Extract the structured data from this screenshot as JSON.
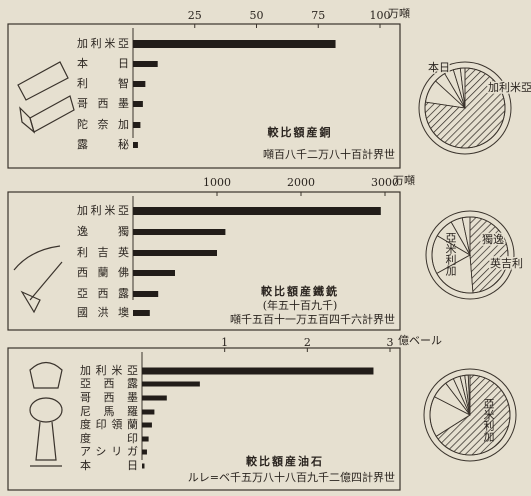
{
  "chart_data": [
    {
      "type": "bar",
      "orientation": "horizontal",
      "title": "較比額産銅",
      "footnote": "噸百八千二万八十百計界世",
      "unit": "万噸",
      "categories": [
        "加利米亞",
        "本日",
        "利智",
        "哥西墨",
        "陀奈加",
        "露秘"
      ],
      "values": [
        82,
        10,
        5,
        4,
        3,
        2
      ],
      "xlim": [
        0,
        100
      ],
      "xticks": [
        25,
        50,
        75,
        100
      ],
      "color": "#221d19",
      "pie_labels": [
        "本日",
        "加利米亞"
      ]
    },
    {
      "type": "bar",
      "orientation": "horizontal",
      "title": "較比額産鐵銑",
      "subtitle": "(年五十百九千)",
      "footnote": "噸千五百十一万五百四千六計界世",
      "unit": "万噸",
      "categories": [
        "加利米亞",
        "逸獨",
        "利吉英",
        "西蘭佛",
        "亞西露",
        "國洪墺"
      ],
      "values": [
        2950,
        1100,
        1000,
        500,
        300,
        200
      ],
      "xlim": [
        0,
        3000
      ],
      "xticks": [
        1000,
        2000,
        3000
      ],
      "color": "#221d19",
      "pie_labels": [
        "亞米利加",
        "獨逸",
        "英吉利"
      ]
    },
    {
      "type": "bar",
      "orientation": "horizontal",
      "title": "較比額産油石",
      "footnote": "ルレ=ベ千五万八十八百九千二億四計界世",
      "unit": "億ベール",
      "categories": [
        "加利米亞",
        "亞西露",
        "哥西墨",
        "尼馬羅",
        "度印領蘭",
        "度印",
        "アシリガ",
        "本日"
      ],
      "values": [
        2.8,
        0.7,
        0.3,
        0.15,
        0.12,
        0.08,
        0.06,
        0.03
      ],
      "xlim": [
        0,
        3
      ],
      "xticks": [
        1,
        2,
        3
      ],
      "color": "#221d19",
      "pie_labels": [
        "亞米利加"
      ]
    }
  ]
}
